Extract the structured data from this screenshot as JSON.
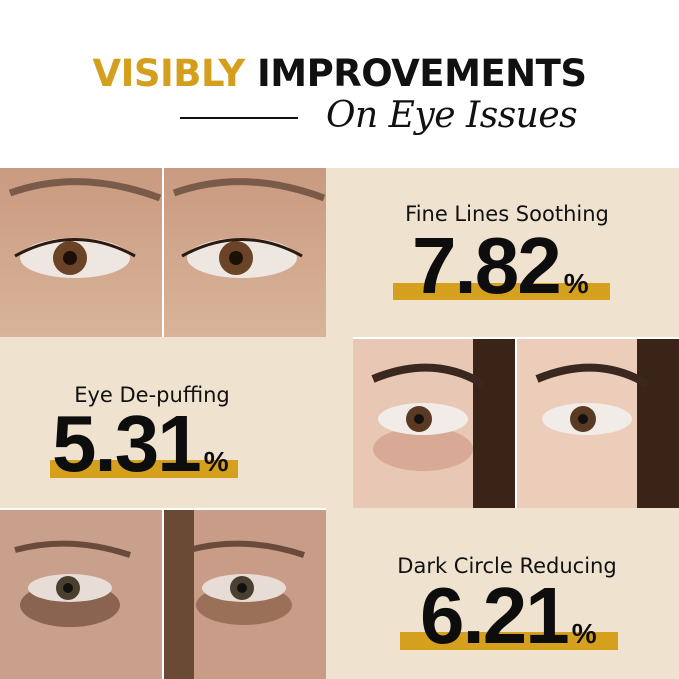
{
  "header": {
    "title_accent": "VISIBLY",
    "title_main": "IMPROVEMENTS",
    "subtitle": "On Eye Issues"
  },
  "colors": {
    "accent": "#d39f1c",
    "panel": "#efe3d0",
    "bar": "#d4a01e"
  },
  "stats": [
    {
      "label": "Fine Lines Soothing",
      "value": "7.82",
      "unit": "%"
    },
    {
      "label": "Eye De-puffing",
      "value": "5.31",
      "unit": "%"
    },
    {
      "label": "Dark Circle Reducing",
      "value": "6.21",
      "unit": "%"
    }
  ],
  "photos": [
    "before-fine-lines",
    "after-fine-lines",
    "before-puffiness",
    "after-puffiness",
    "before-dark-circles",
    "after-dark-circles"
  ]
}
